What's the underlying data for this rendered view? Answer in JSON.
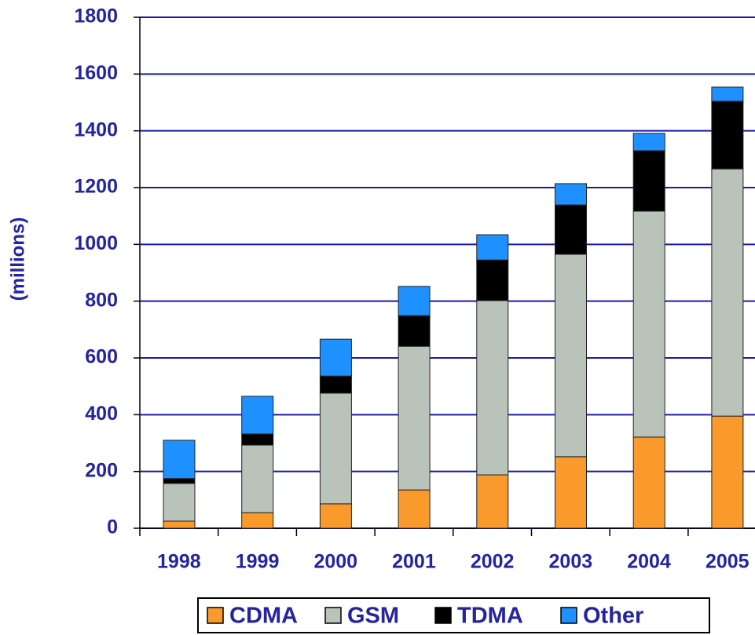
{
  "chart_data": {
    "type": "bar",
    "stacked": true,
    "y_label": "(millions)",
    "categories": [
      "1998",
      "1999",
      "2000",
      "2001",
      "2002",
      "2003",
      "2004",
      "2005"
    ],
    "series": [
      {
        "name": "CDMA",
        "color": "#fb9a2c",
        "values": [
          25,
          55,
          86,
          135,
          188,
          252,
          321,
          395
        ]
      },
      {
        "name": "GSM",
        "color": "#b9c3b9",
        "values": [
          133,
          238,
          390,
          506,
          614,
          713,
          796,
          871
        ]
      },
      {
        "name": "TDMA",
        "color": "#000000",
        "values": [
          17,
          39,
          60,
          108,
          143,
          174,
          213,
          238
        ]
      },
      {
        "name": "Other",
        "color": "#1e90ff",
        "values": [
          135,
          133,
          130,
          103,
          89,
          75,
          61,
          50
        ]
      }
    ],
    "ylim": [
      0,
      1800
    ],
    "yticks": [
      0,
      200,
      400,
      600,
      800,
      1000,
      1200,
      1400,
      1600,
      1800
    ],
    "grid": true,
    "legend": "bottom"
  }
}
